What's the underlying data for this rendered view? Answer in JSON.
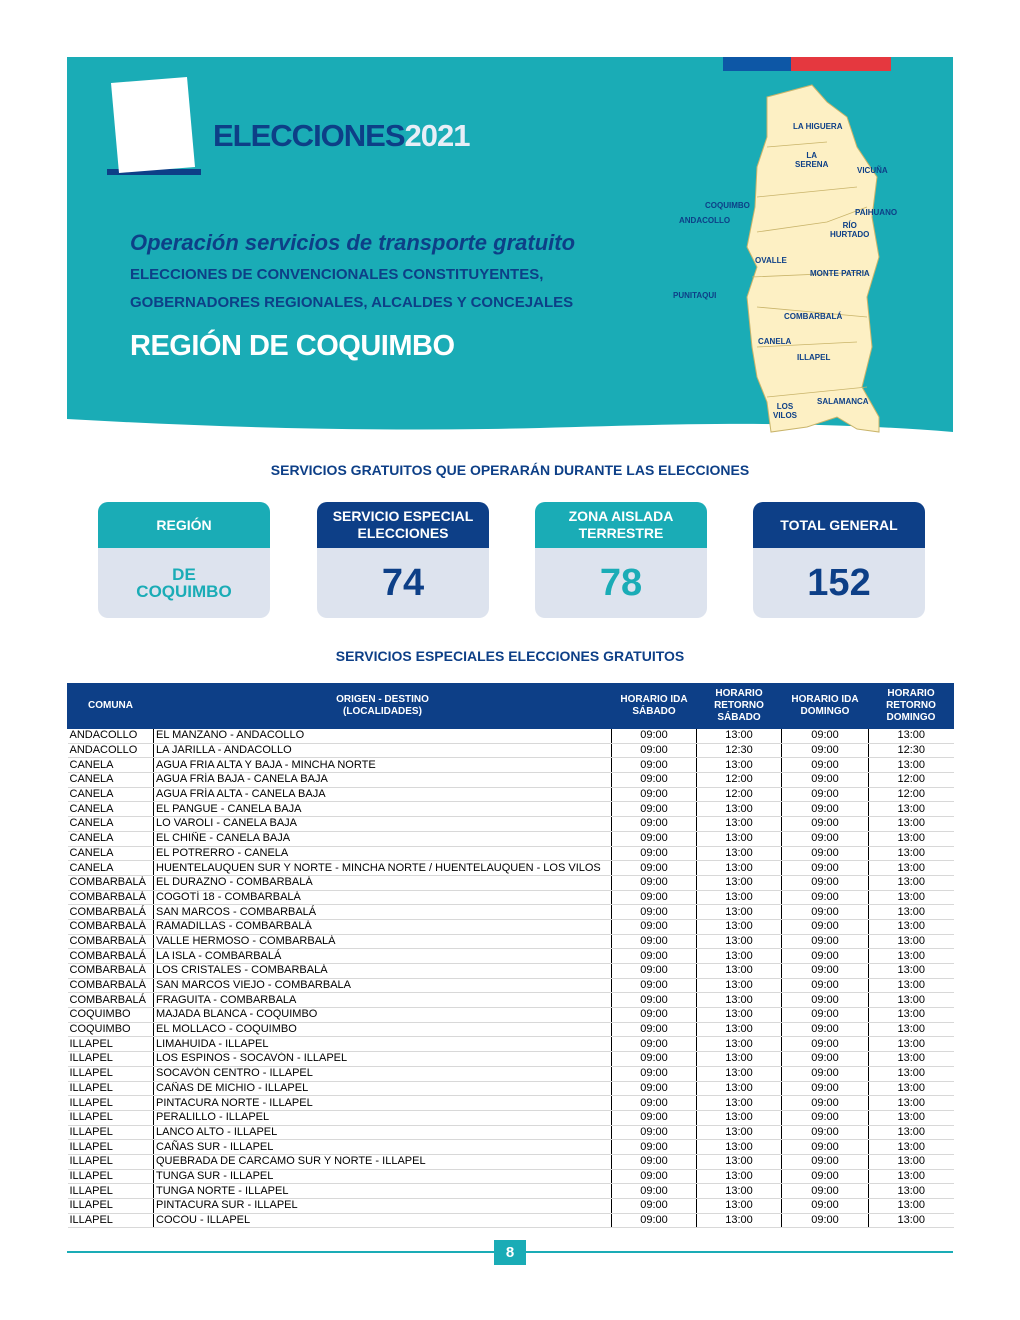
{
  "header": {
    "title": "ELECCIONES",
    "year": "2021",
    "subtitle": "Operación servicios de transporte gratuito",
    "line1": "ELECCIONES DE CONVENCIONALES CONSTITUYENTES,",
    "line2": "GOBERNADORES REGIONALES, ALCALDES Y CONCEJALES",
    "region": "REGIÓN DE COQUIMBO"
  },
  "map": {
    "labels": [
      "LA HIGUERA",
      "LA\nSERENA",
      "VICUÑA",
      "COQUIMBO",
      "PAIHUANO",
      "ANDACOLLO",
      "RÍO\nHURTADO",
      "OVALLE",
      "MONTE PATRIA",
      "PUNITAQUI",
      "COMBARBALÁ",
      "CANELA",
      "ILLAPEL",
      "SALAMANCA",
      "LOS\nVILOS"
    ]
  },
  "summary": {
    "title": "SERVICIOS GRATUITOS QUE OPERARÁN DURANTE LAS ELECCIONES",
    "cards": [
      {
        "header": "REGIÓN",
        "value": "DE\nCOQUIMBO"
      },
      {
        "header": "SERVICIO ESPECIAL\nELECCIONES",
        "value": 74
      },
      {
        "header": "ZONA AISLADA\nTERRESTRE",
        "value": 78
      },
      {
        "header": "TOTAL GENERAL",
        "value": 152
      }
    ]
  },
  "table": {
    "title": "SERVICIOS ESPECIALES ELECCIONES GRATUITOS",
    "headers": [
      "COMUNA",
      "ORIGEN - DESTINO\n(LOCALIDADES)",
      "HORARIO IDA\nSÁBADO",
      "HORARIO\nRETORNO\nSÁBADO",
      "HORARIO IDA\nDOMINGO",
      "HORARIO\nRETORNO\nDOMINGO"
    ],
    "rows": [
      [
        "ANDACOLLO",
        "EL MANZANO - ANDACOLLO",
        "09:00",
        "13:00",
        "09:00",
        "13:00"
      ],
      [
        "ANDACOLLO",
        "LA JARILLA - ANDACOLLO",
        "09:00",
        "12:30",
        "09:00",
        "12:30"
      ],
      [
        "CANELA",
        "AGUA FRIA ALTA Y BAJA - MINCHA NORTE",
        "09:00",
        "13:00",
        "09:00",
        "13:00"
      ],
      [
        "CANELA",
        "AGUA FRÍA BAJA - CANELA BAJA",
        "09:00",
        "12:00",
        "09:00",
        "12:00"
      ],
      [
        "CANELA",
        "AGUA FRÍA ALTA - CANELA BAJA",
        "09:00",
        "12:00",
        "09:00",
        "12:00"
      ],
      [
        "CANELA",
        "EL PANGUE - CANELA BAJA",
        "09:00",
        "13:00",
        "09:00",
        "13:00"
      ],
      [
        "CANELA",
        "LO VAROLI - CANELA BAJA",
        "09:00",
        "13:00",
        "09:00",
        "13:00"
      ],
      [
        "CANELA",
        "EL CHIÑE - CANELA BAJA",
        "09:00",
        "13:00",
        "09:00",
        "13:00"
      ],
      [
        "CANELA",
        "EL POTRERRO - CANELA",
        "09:00",
        "13:00",
        "09:00",
        "13:00"
      ],
      [
        "CANELA",
        "HUENTELAUQUEN SUR Y NORTE - MINCHA NORTE / HUENTELAUQUEN - LOS VILOS",
        "09:00",
        "13:00",
        "09:00",
        "13:00"
      ],
      [
        "COMBARBALÁ",
        "EL DURAZNO - COMBARBALÁ",
        "09:00",
        "13:00",
        "09:00",
        "13:00"
      ],
      [
        "COMBARBALÁ",
        "COGOTÍ 18 - COMBARBALÁ",
        "09:00",
        "13:00",
        "09:00",
        "13:00"
      ],
      [
        "COMBARBALÁ",
        "SAN MARCOS - COMBARBALÁ",
        "09:00",
        "13:00",
        "09:00",
        "13:00"
      ],
      [
        "COMBARBALÁ",
        "RAMADILLAS - COMBARBALÁ",
        "09:00",
        "13:00",
        "09:00",
        "13:00"
      ],
      [
        "COMBARBALÁ",
        "VALLE HERMOSO - COMBARBALÁ",
        "09:00",
        "13:00",
        "09:00",
        "13:00"
      ],
      [
        "COMBARBALÁ",
        "LA ISLA - COMBARBALÁ",
        "09:00",
        "13:00",
        "09:00",
        "13:00"
      ],
      [
        "COMBARBALÁ",
        "LOS CRISTALES - COMBARBALÁ",
        "09:00",
        "13:00",
        "09:00",
        "13:00"
      ],
      [
        "COMBARBALÁ",
        "SAN MARCOS VIEJO - COMBARBALA",
        "09:00",
        "13:00",
        "09:00",
        "13:00"
      ],
      [
        "COMBARBALÁ",
        "FRAGUITA - COMBARBALA",
        "09:00",
        "13:00",
        "09:00",
        "13:00"
      ],
      [
        "COQUIMBO",
        "MAJADA BLANCA - COQUIMBO",
        "09:00",
        "13:00",
        "09:00",
        "13:00"
      ],
      [
        "COQUIMBO",
        "EL MOLLACO - COQUIMBO",
        "09:00",
        "13:00",
        "09:00",
        "13:00"
      ],
      [
        "ILLAPEL",
        "LIMAHUIDA - ILLAPEL",
        "09:00",
        "13:00",
        "09:00",
        "13:00"
      ],
      [
        "ILLAPEL",
        "LOS ESPINOS - SOCAVÓN - ILLAPEL",
        "09:00",
        "13:00",
        "09:00",
        "13:00"
      ],
      [
        "ILLAPEL",
        "SOCAVÓN CENTRO - ILLAPEL",
        "09:00",
        "13:00",
        "09:00",
        "13:00"
      ],
      [
        "ILLAPEL",
        "CAÑAS DE MICHIO - ILLAPEL",
        "09:00",
        "13:00",
        "09:00",
        "13:00"
      ],
      [
        "ILLAPEL",
        "PINTACURA NORTE - ILLAPEL",
        "09:00",
        "13:00",
        "09:00",
        "13:00"
      ],
      [
        "ILLAPEL",
        "PERALILLO - ILLAPEL",
        "09:00",
        "13:00",
        "09:00",
        "13:00"
      ],
      [
        "ILLAPEL",
        "LANCO ALTO - ILLAPEL",
        "09:00",
        "13:00",
        "09:00",
        "13:00"
      ],
      [
        "ILLAPEL",
        "CAÑAS SUR - ILLAPEL",
        "09:00",
        "13:00",
        "09:00",
        "13:00"
      ],
      [
        "ILLAPEL",
        "QUEBRADA DE CARCAMO SUR Y NORTE - ILLAPEL",
        "09:00",
        "13:00",
        "09:00",
        "13:00"
      ],
      [
        "ILLAPEL",
        "TUNGA SUR - ILLAPEL",
        "09:00",
        "13:00",
        "09:00",
        "13:00"
      ],
      [
        "ILLAPEL",
        "TUNGA NORTE - ILLAPEL",
        "09:00",
        "13:00",
        "09:00",
        "13:00"
      ],
      [
        "ILLAPEL",
        "PINTACURA SUR - ILLAPEL",
        "09:00",
        "13:00",
        "09:00",
        "13:00"
      ],
      [
        "ILLAPEL",
        "COCOU - ILLAPEL",
        "09:00",
        "13:00",
        "09:00",
        "13:00"
      ]
    ]
  },
  "page_number": 8
}
